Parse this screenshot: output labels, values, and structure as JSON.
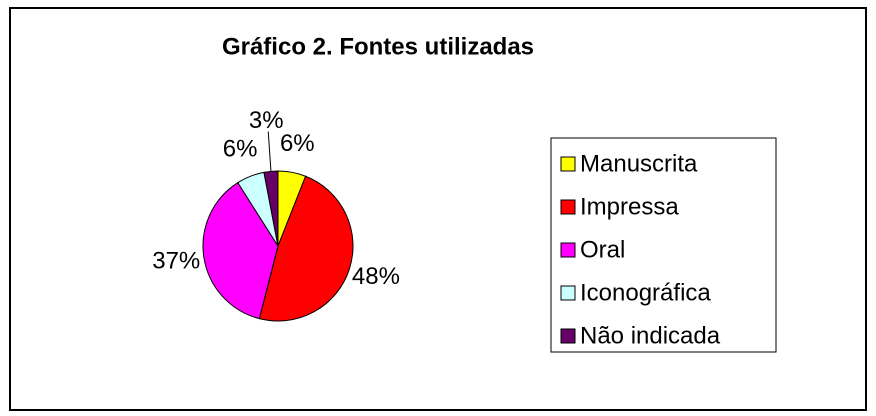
{
  "chart_data": {
    "type": "pie",
    "title": "Gráfico 2. Fontes utilizadas",
    "categories": [
      "Manuscrita",
      "Impressa",
      "Oral",
      "Iconográfica",
      "Não indicada"
    ],
    "values": [
      6,
      48,
      37,
      6,
      3
    ],
    "value_labels": [
      "6%",
      "48%",
      "37%",
      "6%",
      "3%"
    ],
    "colors": [
      "#ffff00",
      "#ff0000",
      "#ff00ff",
      "#ccffff",
      "#660066"
    ],
    "legend": "right"
  }
}
